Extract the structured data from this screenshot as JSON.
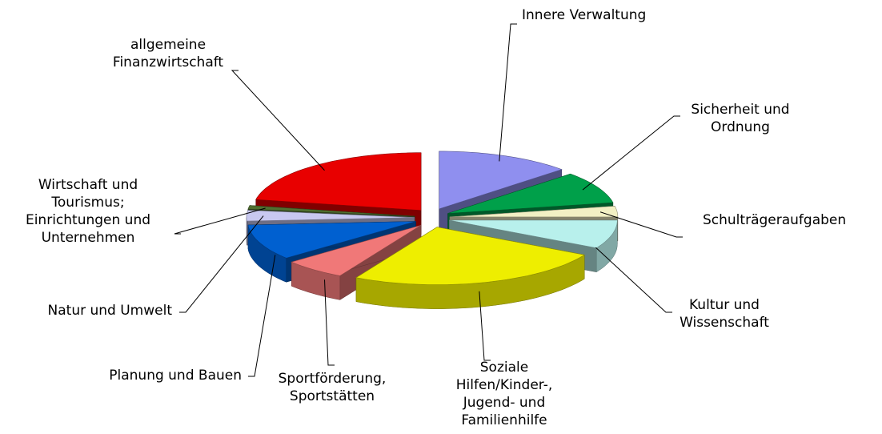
{
  "chart_data": {
    "type": "pie3d",
    "categories": [
      "Innere Verwaltung",
      "Sicherheit und Ordnung",
      "Schulträgeraufgaben",
      "Kultur und Wissenschaft",
      "Soziale Hilfen/Kinder-, Jugend- und Familienhilfe",
      "Sportförderung, Sportstätten",
      "Planung und Bauen",
      "Natur und Umwelt",
      "Wirtschaft und Tourismus; Einrichtungen und Unternehmen",
      "allgemeine Finanzwirtschaft"
    ],
    "values": [
      13,
      9,
      3,
      8,
      25,
      6,
      10,
      3,
      1,
      22
    ],
    "colors": [
      "#8f8fef",
      "#00a04a",
      "#f2f0c4",
      "#b8f0ec",
      "#eeee00",
      "#f07878",
      "#0060d0",
      "#c8c8f0",
      "#507030",
      "#e80000"
    ]
  }
}
